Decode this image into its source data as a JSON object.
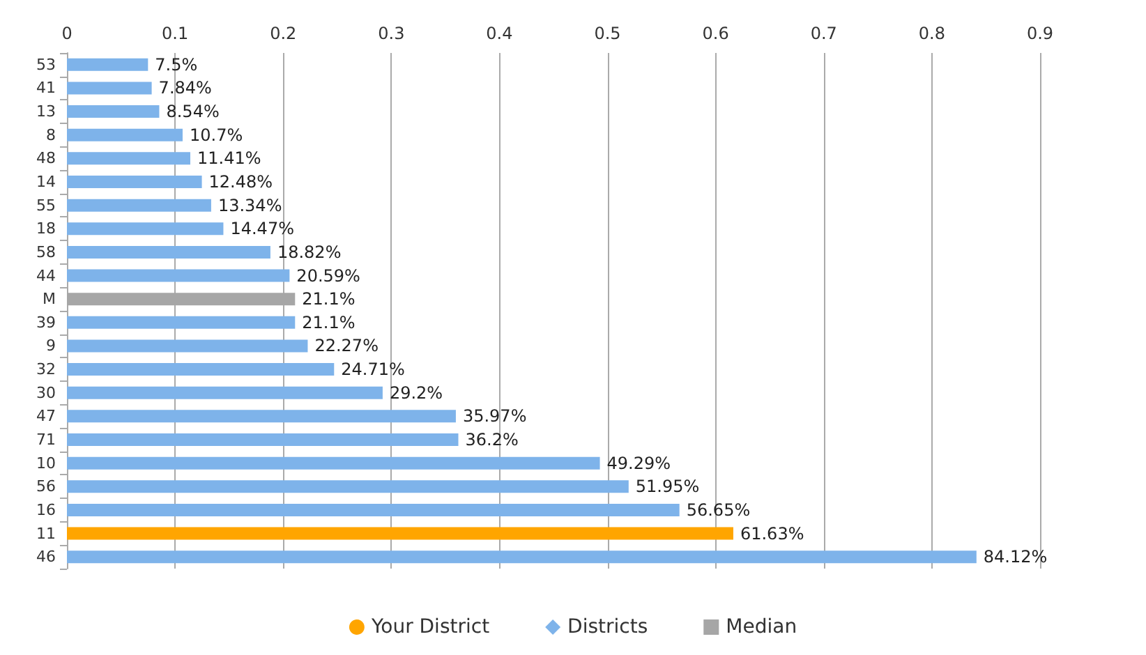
{
  "chart_data": {
    "type": "bar",
    "orientation": "horizontal",
    "categories": [
      "53",
      "41",
      "13",
      "8",
      "48",
      "14",
      "55",
      "18",
      "58",
      "44",
      "M",
      "39",
      "9",
      "32",
      "30",
      "47",
      "71",
      "10",
      "56",
      "16",
      "11",
      "46"
    ],
    "series": [
      {
        "name": "Your District",
        "color": "#ffa500",
        "marker": "circle",
        "values": [
          null,
          null,
          null,
          null,
          null,
          null,
          null,
          null,
          null,
          null,
          null,
          null,
          null,
          null,
          null,
          null,
          null,
          null,
          null,
          null,
          0.6163,
          null
        ],
        "value_labels": [
          null,
          null,
          null,
          null,
          null,
          null,
          null,
          null,
          null,
          null,
          null,
          null,
          null,
          null,
          null,
          null,
          null,
          null,
          null,
          null,
          "61.63%",
          null
        ]
      },
      {
        "name": "Districts",
        "color": "#7eb3ea",
        "marker": "diamond",
        "values": [
          0.075,
          0.0784,
          0.0854,
          0.107,
          0.1141,
          0.1248,
          0.1334,
          0.1447,
          0.1882,
          0.2059,
          null,
          0.211,
          0.2227,
          0.2471,
          0.292,
          0.3597,
          0.362,
          0.4929,
          0.5195,
          0.5665,
          null,
          0.8412
        ],
        "value_labels": [
          "7.5%",
          "7.84%",
          "8.54%",
          "10.7%",
          "11.41%",
          "12.48%",
          "13.34%",
          "14.47%",
          "18.82%",
          "20.59%",
          null,
          "21.1%",
          "22.27%",
          "24.71%",
          "29.2%",
          "35.97%",
          "36.2%",
          "49.29%",
          "51.95%",
          "56.65%",
          null,
          "84.12%"
        ]
      },
      {
        "name": "Median",
        "color": "#a6a6a6",
        "marker": "square",
        "values": [
          null,
          null,
          null,
          null,
          null,
          null,
          null,
          null,
          null,
          null,
          0.211,
          null,
          null,
          null,
          null,
          null,
          null,
          null,
          null,
          null,
          null,
          null
        ],
        "value_labels": [
          null,
          null,
          null,
          null,
          null,
          null,
          null,
          null,
          null,
          null,
          "21.1%",
          null,
          null,
          null,
          null,
          null,
          null,
          null,
          null,
          null,
          null,
          null
        ]
      }
    ],
    "xlim": [
      0,
      0.9
    ],
    "xticks": [
      0,
      0.1,
      0.2,
      0.3,
      0.4,
      0.5,
      0.6,
      0.7,
      0.8,
      0.9
    ],
    "grid": "x",
    "legend": "bottom"
  }
}
